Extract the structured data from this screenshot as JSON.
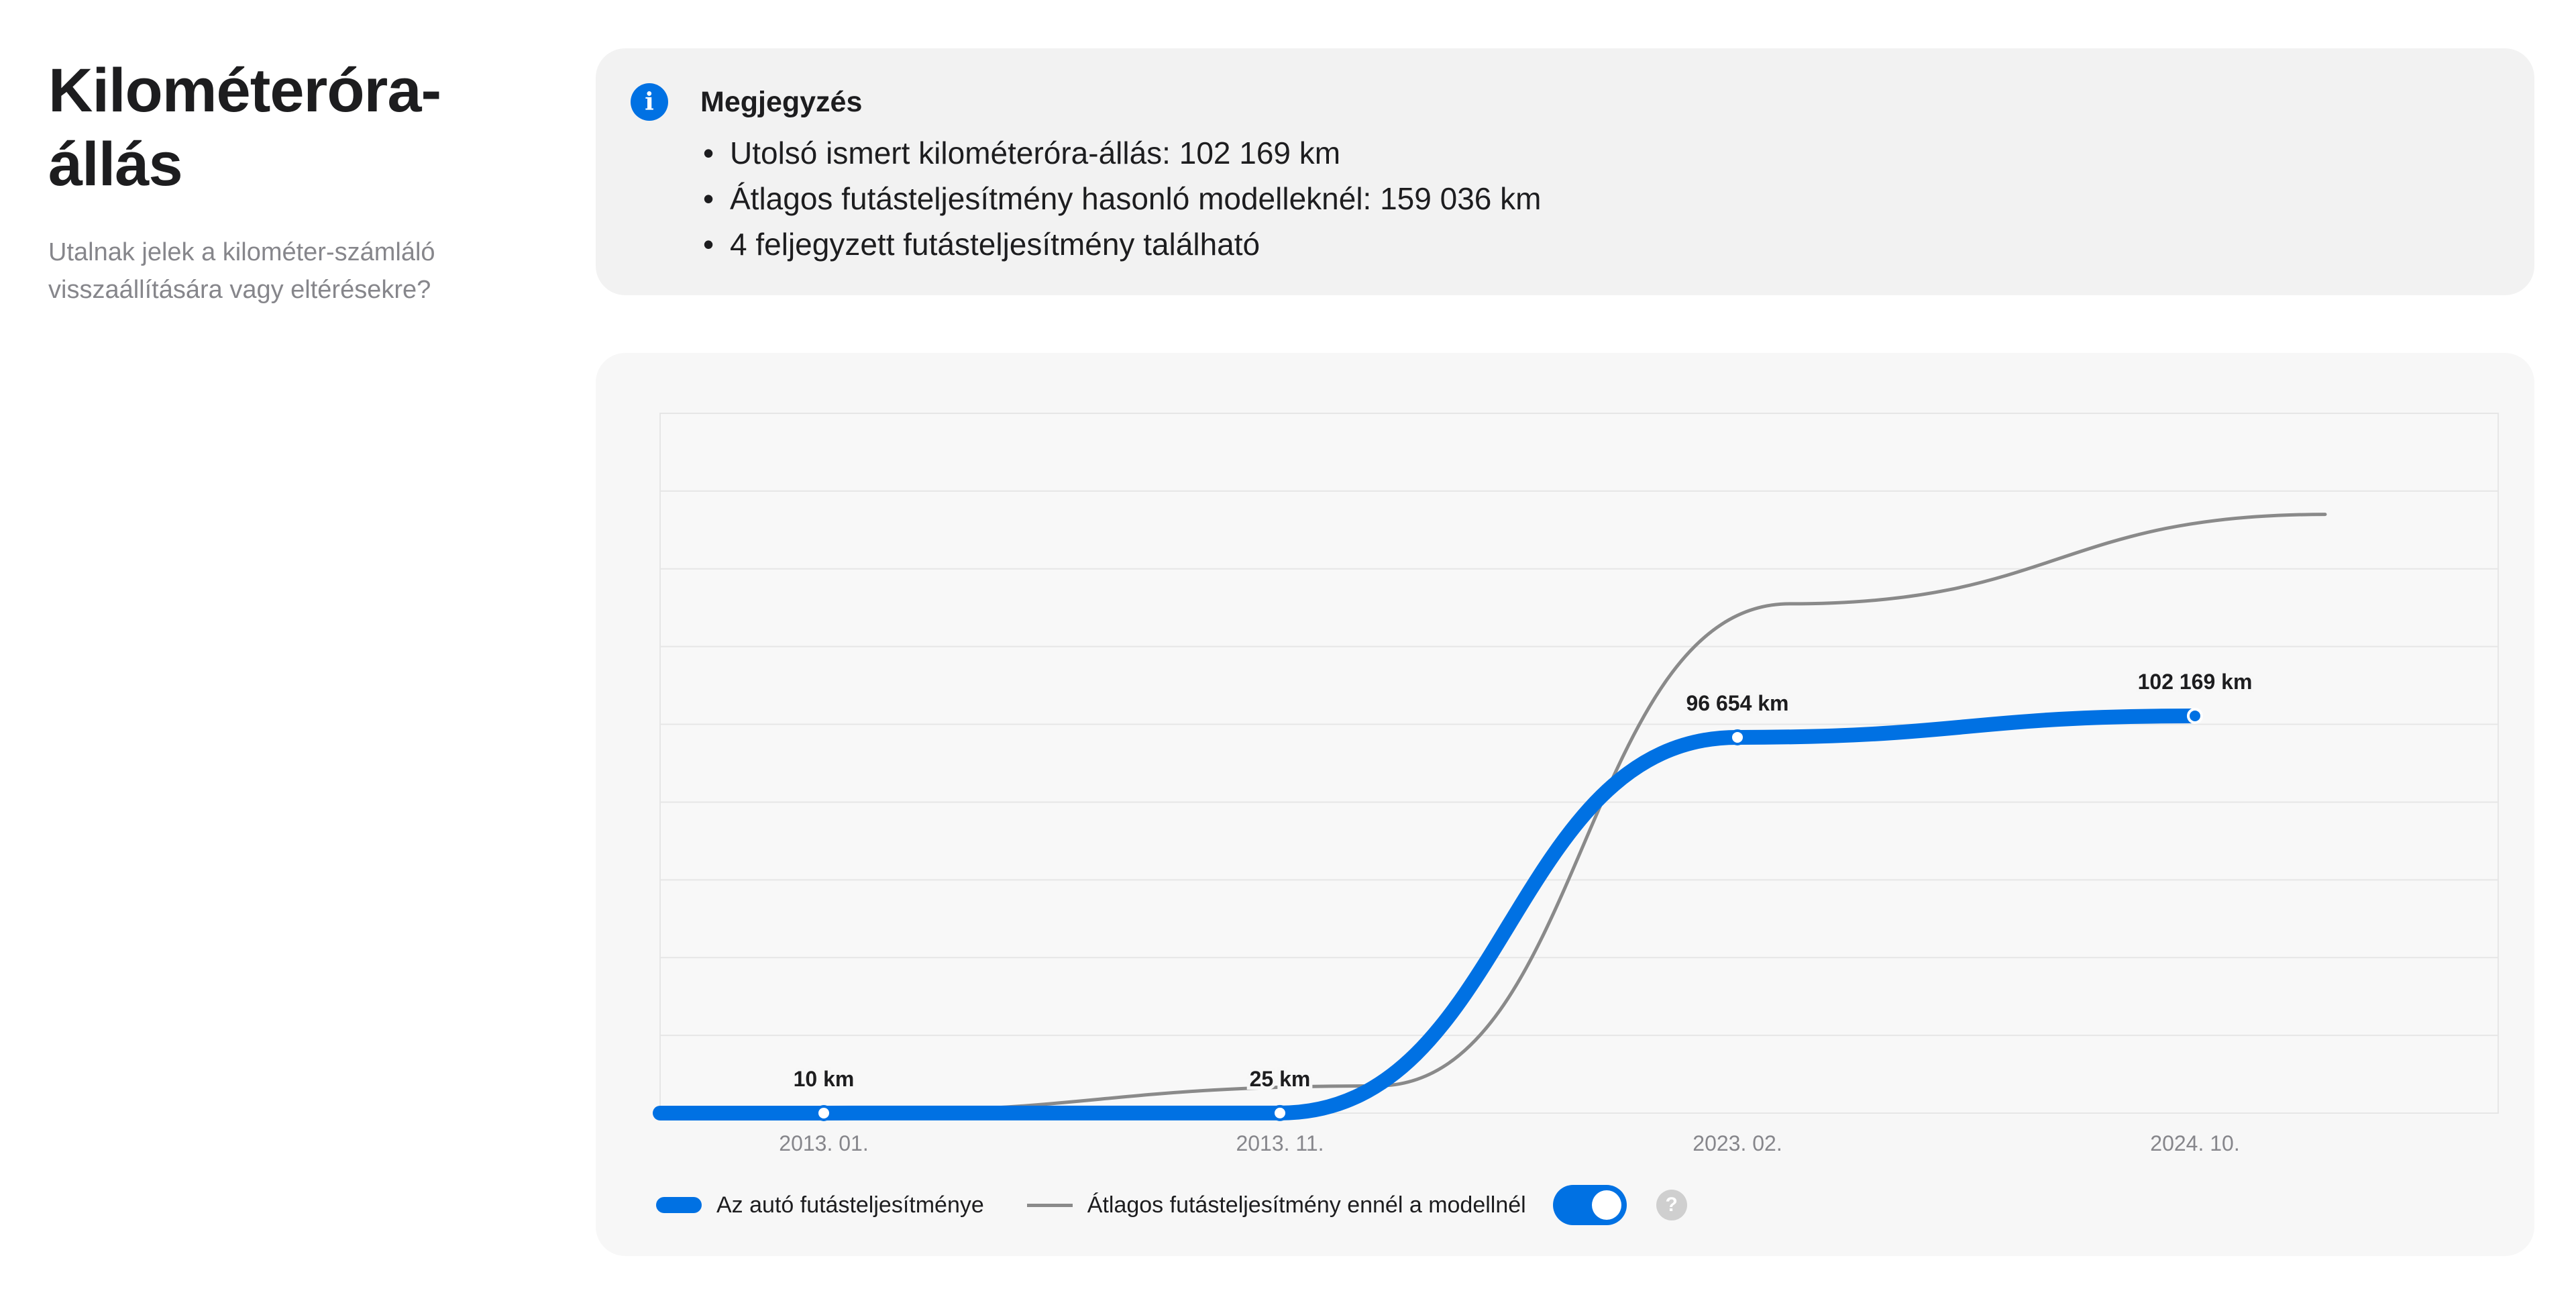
{
  "section": {
    "title": "Kilométeróra-állás",
    "title_line1": "Kilométeróra-",
    "title_line2": "állás",
    "subtitle_line1": "Utalnak jelek a kilométer-számláló",
    "subtitle_line2": "visszaállítására vagy eltérésekre?"
  },
  "note": {
    "icon": "info-icon",
    "icon_glyph": "i",
    "title": "Megjegyzés",
    "items": [
      "Utolsó ismert kilométeróra-állás: 102 169 km",
      "Átlagos futásteljesítmény hasonló modelleknél: 159 036 km",
      "4 feljegyzett futásteljesítmény található"
    ]
  },
  "legend": {
    "car_label": "Az autó futásteljesítménye",
    "avg_label": "Átlagos futásteljesítmény ennél a modellnél",
    "avg_toggle_on": true,
    "help_glyph": "?"
  },
  "colors": {
    "accent": "#0071e3",
    "average_line": "#8a8a8a",
    "card_background": "#f7f7f7",
    "note_background": "#f2f2f2"
  },
  "chart_data": {
    "type": "line",
    "x_ticks": [
      "2013. 01.",
      "2013. 11.",
      "2023. 02.",
      "2024. 10."
    ],
    "ylim": [
      0,
      180000
    ],
    "grid": true,
    "legend_position": "bottom-left",
    "series": [
      {
        "name": "Az autó futásteljesítménye",
        "color": "#0071e3",
        "points": [
          {
            "x": "2013. 01.",
            "y": 10,
            "label": "10 km"
          },
          {
            "x": "2013. 11.",
            "y": 25,
            "label": "25 km"
          },
          {
            "x": "2023. 02.",
            "y": 96654,
            "label": "96 654 km"
          },
          {
            "x": "2024. 10.",
            "y": 102169,
            "label": "102 169 km"
          }
        ]
      },
      {
        "name": "Átlagos futásteljesítmény ennél a modellnél",
        "color": "#8a8a8a",
        "points": [
          {
            "x": "2013. 01.",
            "y": 200
          },
          {
            "x": "2013. 11.",
            "y": 7000
          },
          {
            "x": "2023. 02.",
            "y": 131000
          },
          {
            "x": "2024. 10.",
            "y": 154000
          }
        ]
      }
    ]
  }
}
